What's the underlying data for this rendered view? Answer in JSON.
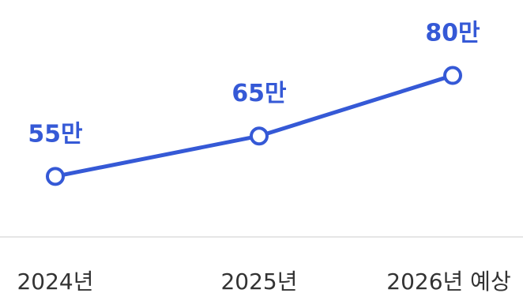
{
  "chart_data": {
    "type": "line",
    "categories": [
      "2024년",
      "2025년",
      "2026년 예상"
    ],
    "values": [
      55,
      65,
      80
    ],
    "data_labels": [
      "55만",
      "65만",
      "80만"
    ],
    "title": "",
    "xlabel": "",
    "ylabel": "",
    "ylim": [
      40,
      85
    ],
    "grid": false,
    "legend": "none"
  },
  "colors": {
    "line": "#3559d6",
    "marker_fill": "#ffffff",
    "axis": "#e6e6e6",
    "tick_text": "#333333",
    "label_text": "#3559d6"
  }
}
